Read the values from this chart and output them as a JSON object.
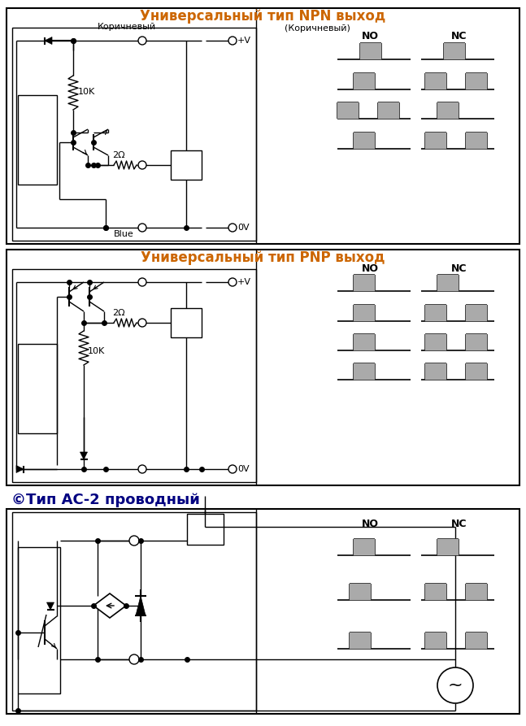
{
  "title1": "Универсальный тип NPN выход",
  "title2": "Универсальный тип PNP выход",
  "title3": "©Тип АС-2 проводный",
  "npn_subtitle": "(Коричневый)",
  "npn_brown_label": "Коричневый",
  "blue_label": "Blue",
  "pv_label": "+V",
  "gv_label": "0V",
  "no_label": "NO",
  "nc_label": "NC",
  "r10k": "10K",
  "r2ohm": "2Ω",
  "gray_color": "#aaaaaa",
  "black": "#000000",
  "title_color_orange": "#CC6600",
  "title_color_blue": "#000080",
  "bg_color": "#ffffff",
  "fig_width": 6.47,
  "fig_height": 8.93
}
